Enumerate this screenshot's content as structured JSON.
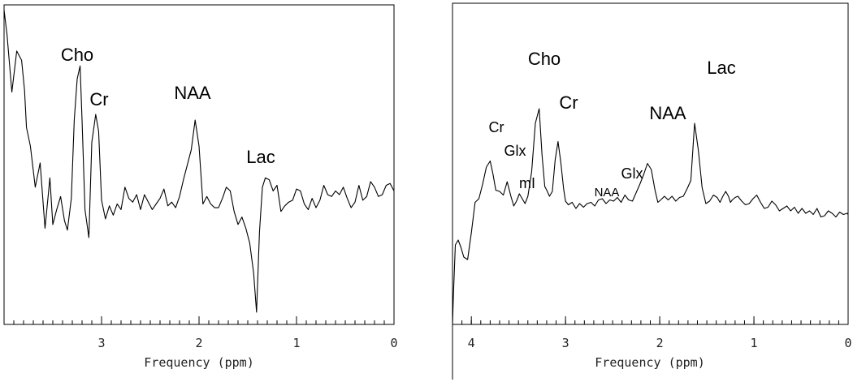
{
  "chart_data": [
    {
      "type": "line",
      "title": "",
      "xlabel": "Frequency (ppm)",
      "ylabel": "",
      "xlim": [
        4.0,
        0.0
      ],
      "x_reversed": true,
      "ticks": [
        "3",
        "2",
        "1",
        "0"
      ],
      "grid": false,
      "annotations": [
        {
          "text": "Cho",
          "x": 3.22
        },
        {
          "text": "Cr",
          "x": 3.03
        },
        {
          "text": "NAA",
          "x": 2.02
        },
        {
          "text": "Lac",
          "x": 1.4
        }
      ],
      "series": [
        {
          "x": [
            4.0,
            3.97,
            3.92,
            3.87,
            3.82,
            3.79,
            3.77,
            3.73,
            3.68,
            3.63,
            3.58,
            3.55,
            3.53,
            3.5,
            3.46,
            3.42,
            3.38,
            3.35,
            3.31,
            3.28,
            3.25,
            3.22,
            3.2,
            3.17,
            3.13,
            3.1,
            3.06,
            3.03,
            3.0,
            2.96,
            2.92,
            2.88,
            2.84,
            2.8,
            2.76,
            2.72,
            2.68,
            2.64,
            2.6,
            2.56,
            2.52,
            2.48,
            2.44,
            2.4,
            2.36,
            2.32,
            2.28,
            2.24,
            2.2,
            2.16,
            2.12,
            2.08,
            2.04,
            2.0,
            1.96,
            1.92,
            1.88,
            1.84,
            1.8,
            1.76,
            1.72,
            1.68,
            1.64,
            1.6,
            1.56,
            1.52,
            1.48,
            1.44,
            1.41,
            1.38,
            1.35,
            1.32,
            1.28,
            1.24,
            1.2,
            1.16,
            1.12,
            1.08,
            1.04,
            1.0,
            0.96,
            0.92,
            0.88,
            0.84,
            0.8,
            0.76,
            0.72,
            0.68,
            0.64,
            0.6,
            0.56,
            0.52,
            0.48,
            0.44,
            0.4,
            0.36,
            0.32,
            0.28,
            0.24,
            0.2,
            0.16,
            0.12,
            0.08,
            0.04,
            0.0
          ],
          "y": [
            0.99,
            0.86,
            0.55,
            0.77,
            0.72,
            0.56,
            0.36,
            0.26,
            0.04,
            0.17,
            -0.18,
            -0.02,
            0.09,
            -0.16,
            -0.08,
            -0.01,
            -0.14,
            -0.19,
            -0.02,
            0.4,
            0.62,
            0.69,
            0.4,
            -0.08,
            -0.23,
            0.28,
            0.43,
            0.34,
            -0.03,
            -0.13,
            -0.06,
            -0.11,
            -0.05,
            -0.08,
            0.04,
            -0.02,
            -0.04,
            0.0,
            -0.08,
            0.0,
            -0.04,
            -0.08,
            -0.05,
            -0.02,
            0.03,
            -0.06,
            -0.04,
            -0.07,
            -0.01,
            0.08,
            0.16,
            0.24,
            0.4,
            0.26,
            -0.05,
            -0.01,
            -0.05,
            -0.07,
            -0.07,
            -0.02,
            0.04,
            0.02,
            -0.09,
            -0.16,
            -0.12,
            -0.18,
            -0.26,
            -0.42,
            -0.63,
            -0.2,
            0.04,
            0.09,
            0.08,
            0.02,
            0.05,
            -0.09,
            -0.06,
            -0.04,
            -0.03,
            0.03,
            0.02,
            -0.05,
            -0.08,
            -0.02,
            -0.07,
            -0.03,
            0.05,
            0.0,
            -0.01,
            0.02,
            0.0,
            0.04,
            -0.02,
            -0.07,
            -0.04,
            0.05,
            -0.03,
            -0.01,
            0.07,
            0.04,
            -0.01,
            0.0,
            0.05,
            0.06,
            0.02
          ]
        }
      ]
    },
    {
      "type": "line",
      "title": "",
      "xlabel": "Frequency (ppm)",
      "ylabel": "",
      "xlim": [
        4.2,
        0.0
      ],
      "x_reversed": true,
      "ticks": [
        "4",
        "3",
        "2",
        "1",
        "0"
      ],
      "grid": false,
      "annotations": [
        {
          "text": "Cr",
          "x": 3.75
        },
        {
          "text": "Glx",
          "x": 3.58
        },
        {
          "text": "mI",
          "x": 3.45
        },
        {
          "text": "Cho",
          "x": 3.2
        },
        {
          "text": "Cr",
          "x": 3.0
        },
        {
          "text": "NAA",
          "x": 2.5
        },
        {
          "text": "Glx",
          "x": 2.3
        },
        {
          "text": "NAA",
          "x": 2.02
        },
        {
          "text": "Lac",
          "x": 1.25
        }
      ],
      "series": [
        {
          "x": [
            4.2,
            4.19,
            4.17,
            4.14,
            4.11,
            4.08,
            4.04,
            4.0,
            3.96,
            3.92,
            3.88,
            3.84,
            3.8,
            3.77,
            3.74,
            3.7,
            3.66,
            3.62,
            3.58,
            3.55,
            3.52,
            3.49,
            3.46,
            3.43,
            3.4,
            3.36,
            3.32,
            3.28,
            3.25,
            3.22,
            3.2,
            3.17,
            3.14,
            3.11,
            3.08,
            3.05,
            3.02,
            3.0,
            2.97,
            2.93,
            2.89,
            2.85,
            2.81,
            2.77,
            2.73,
            2.69,
            2.65,
            2.61,
            2.57,
            2.53,
            2.49,
            2.45,
            2.41,
            2.37,
            2.33,
            2.29,
            2.25,
            2.21,
            2.17,
            2.13,
            2.09,
            2.05,
            2.02,
            1.99,
            1.95,
            1.91,
            1.87,
            1.83,
            1.79,
            1.75,
            1.71,
            1.67,
            1.63,
            1.59,
            1.55,
            1.51,
            1.47,
            1.43,
            1.39,
            1.36,
            1.33,
            1.3,
            1.27,
            1.25,
            1.23,
            1.2,
            1.17,
            1.13,
            1.09,
            1.05,
            1.01,
            0.97,
            0.93,
            0.89,
            0.85,
            0.81,
            0.77,
            0.73,
            0.69,
            0.65,
            0.61,
            0.57,
            0.53,
            0.49,
            0.45,
            0.41,
            0.37,
            0.33,
            0.29,
            0.25,
            0.21,
            0.17,
            0.13,
            0.09,
            0.05,
            0.01,
            0.0
          ],
          "y": [
            -1.1,
            -0.8,
            -0.4,
            -0.36,
            -0.42,
            -0.5,
            -0.52,
            -0.3,
            -0.05,
            -0.02,
            0.1,
            0.24,
            0.29,
            0.18,
            0.05,
            0.04,
            0.01,
            0.12,
            0.0,
            -0.08,
            -0.04,
            0.02,
            -0.02,
            -0.06,
            0.0,
            0.2,
            0.6,
            0.72,
            0.34,
            0.08,
            0.05,
            0.0,
            0.04,
            0.3,
            0.45,
            0.28,
            0.06,
            -0.04,
            -0.07,
            -0.05,
            -0.1,
            -0.06,
            -0.09,
            -0.06,
            -0.05,
            -0.08,
            -0.03,
            -0.02,
            -0.06,
            -0.03,
            -0.04,
            -0.01,
            -0.05,
            0.01,
            -0.03,
            -0.04,
            0.03,
            0.1,
            0.18,
            0.27,
            0.22,
            0.05,
            -0.05,
            -0.03,
            0.0,
            -0.03,
            0.0,
            -0.04,
            -0.01,
            0.0,
            0.06,
            0.13,
            0.6,
            0.38,
            0.07,
            -0.06,
            -0.04,
            0.01,
            -0.01,
            -0.05,
            0.0,
            0.04,
            0.0,
            -0.05,
            -0.03,
            -0.01,
            0.0,
            -0.04,
            -0.07,
            -0.06,
            -0.02,
            0.01,
            -0.05,
            -0.1,
            -0.09,
            -0.04,
            -0.07,
            -0.12,
            -0.1,
            -0.08,
            -0.12,
            -0.09,
            -0.14,
            -0.1,
            -0.14,
            -0.12,
            -0.15,
            -0.1,
            -0.17,
            -0.16,
            -0.12,
            -0.14,
            -0.17,
            -0.13,
            -0.15,
            -0.14,
            -0.15
          ]
        }
      ]
    }
  ]
}
